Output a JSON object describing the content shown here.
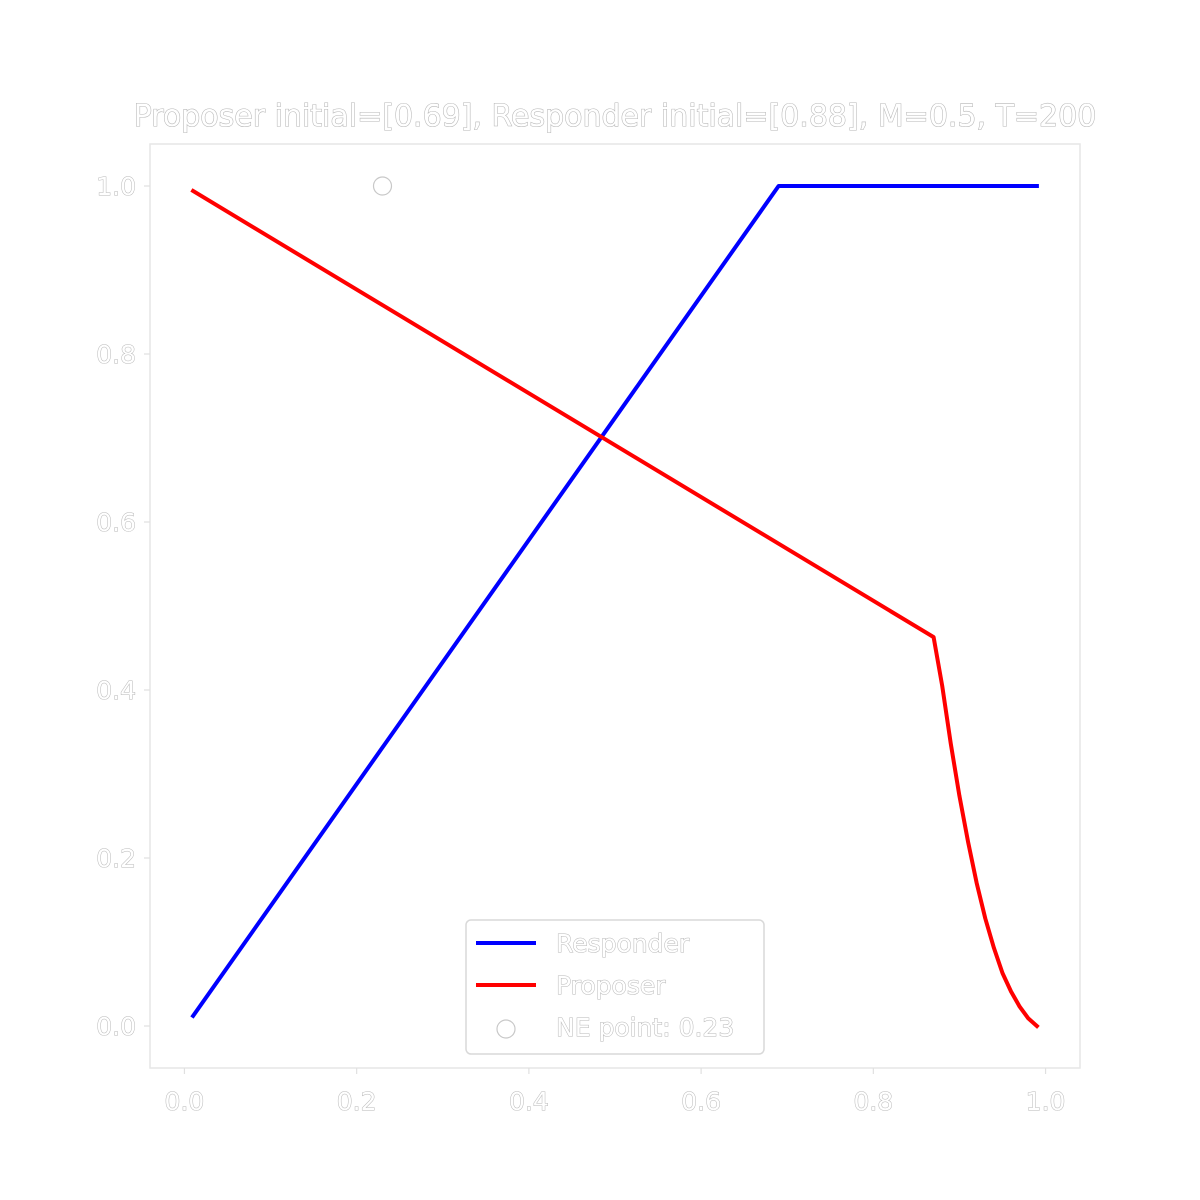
{
  "chart_data": {
    "type": "line",
    "title": "Proposer initial=[0.69], Responder initial=[0.88], M=0.5, T=200",
    "xlabel": "",
    "ylabel": "",
    "xlim": [
      -0.04,
      1.04
    ],
    "ylim": [
      -0.05,
      1.05
    ],
    "xticks": [
      "0.0",
      "0.2",
      "0.4",
      "0.6",
      "0.8",
      "1.0"
    ],
    "yticks": [
      "0.0",
      "0.2",
      "0.4",
      "0.6",
      "0.8",
      "1.0"
    ],
    "grid": false,
    "legend_position": "lower center",
    "series": [
      {
        "name": "Responder",
        "color": "#0000ff",
        "x": [
          0.01,
          0.69,
          0.99
        ],
        "y": [
          0.012,
          1.0,
          1.0
        ]
      },
      {
        "name": "Proposer",
        "color": "#ff0000",
        "x": [
          0.01,
          0.87,
          0.88,
          0.89,
          0.9,
          0.91,
          0.92,
          0.93,
          0.94,
          0.95,
          0.96,
          0.97,
          0.98,
          0.99
        ],
        "y": [
          0.994,
          0.463,
          0.405,
          0.336,
          0.274,
          0.219,
          0.17,
          0.128,
          0.093,
          0.063,
          0.041,
          0.023,
          0.009,
          0.0
        ]
      }
    ],
    "points": [
      {
        "name": "NE point: 0.23",
        "x": 0.23,
        "y": 1.0,
        "marker": "hollow-circle"
      }
    ]
  }
}
